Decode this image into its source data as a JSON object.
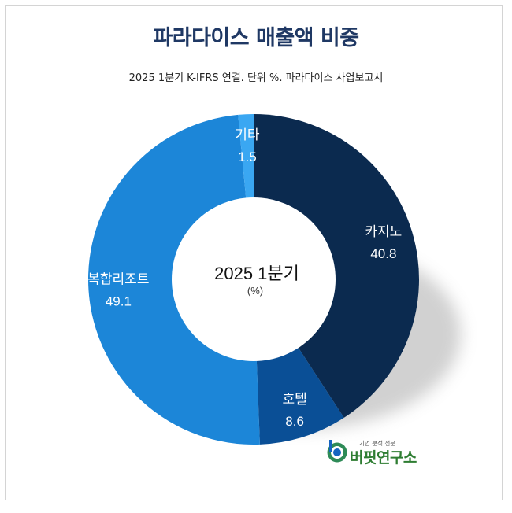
{
  "title": "파라다이스 매출액 비중",
  "subtitle": "2025 1분기 K-IFRS 연결. 단위 %. 파라다이스 사업보고서",
  "center": {
    "line1": "2025 1분기",
    "line2": "(%)"
  },
  "logo": {
    "small_text": "기업 분석 전문",
    "name": "버핏연구소"
  },
  "colors": {
    "casino": "#0b2a4f",
    "hotel": "#0a4f96",
    "resort": "#1c86d8",
    "other": "#3aa7f2"
  },
  "chart_data": {
    "type": "pie",
    "title": "파라다이스 매출액 비중",
    "subtitle": "2025 1분기 K-IFRS 연결. 단위 %. 파라다이스 사업보고서",
    "categories": [
      "카지노",
      "호텔",
      "복합리조트",
      "기타"
    ],
    "values": [
      40.8,
      8.6,
      49.1,
      1.5
    ],
    "value_labels": [
      "40.8",
      "8.6",
      "49.1",
      "1.5"
    ],
    "donut": true,
    "legend": "none"
  }
}
